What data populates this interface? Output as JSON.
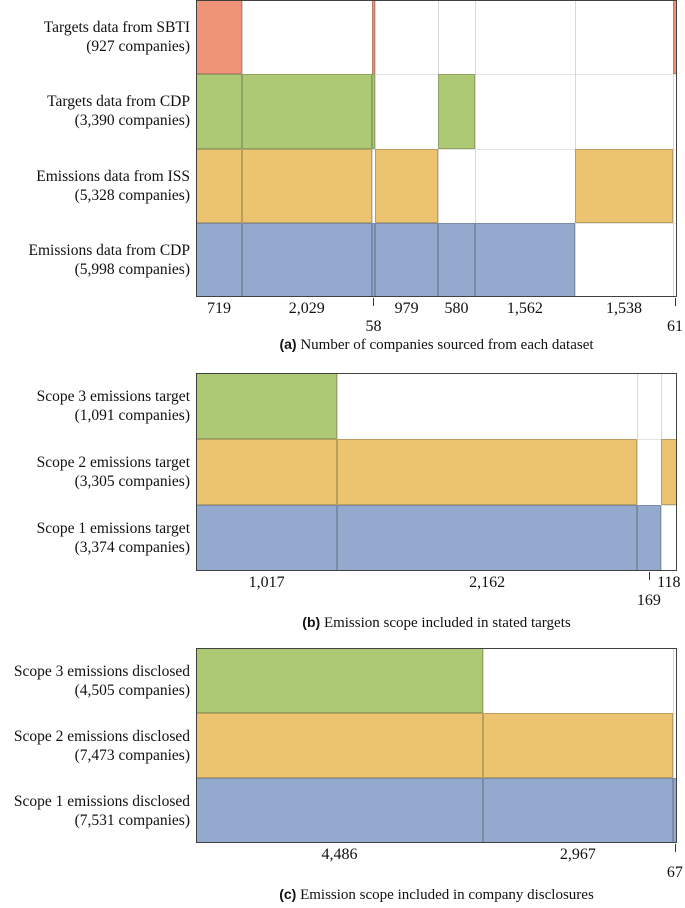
{
  "colors": {
    "red": "#f09478",
    "green": "#aec973",
    "orange": "#ecc36e",
    "blue": "#93a9cd",
    "frame": "#414141",
    "grid": "#d8d8d8",
    "text": "#111111"
  },
  "chart_data": [
    {
      "type": "bar",
      "subtype": "set-membership segmented bar",
      "orientation": "horizontal",
      "caption_tag": "(a)",
      "caption": "Number of companies sourced from each dataset",
      "columns": [
        {
          "value": 719,
          "label": "719",
          "tick": false,
          "second_line": false
        },
        {
          "value": 2029,
          "label": "2,029",
          "tick": false,
          "second_line": false
        },
        {
          "value": 58,
          "label": "58",
          "tick": true,
          "second_line": true
        },
        {
          "value": 979,
          "label": "979",
          "tick": false,
          "second_line": false
        },
        {
          "value": 580,
          "label": "580",
          "tick": false,
          "second_line": false
        },
        {
          "value": 1562,
          "label": "1,562",
          "tick": false,
          "second_line": false
        },
        {
          "value": 1538,
          "label": "1,538",
          "tick": false,
          "second_line": false
        },
        {
          "value": 61,
          "label": "61",
          "tick": true,
          "second_line": true
        }
      ],
      "rows": [
        {
          "label": "Targets data from SBTI",
          "sublabel": "(927 companies)",
          "companies": 927,
          "color_key": "red",
          "filled_columns": [
            0,
            2,
            7
          ]
        },
        {
          "label": "Targets data from CDP",
          "sublabel": "(3,390 companies)",
          "companies": 3390,
          "color_key": "green",
          "filled_columns": [
            0,
            1,
            2,
            4
          ]
        },
        {
          "label": "Emissions data from ISS",
          "sublabel": "(5,328 companies)",
          "companies": 5328,
          "color_key": "orange",
          "filled_columns": [
            0,
            1,
            3,
            6
          ]
        },
        {
          "label": "Emissions data from CDP",
          "sublabel": "(5,998 companies)",
          "companies": 5998,
          "color_key": "blue",
          "filled_columns": [
            0,
            1,
            2,
            3,
            4,
            5
          ]
        }
      ]
    },
    {
      "type": "bar",
      "subtype": "set-membership segmented bar",
      "orientation": "horizontal",
      "caption_tag": "(b)",
      "caption": "Emission scope included in stated targets",
      "columns": [
        {
          "value": 1017,
          "label": "1,017",
          "tick": false,
          "second_line": false
        },
        {
          "value": 2162,
          "label": "2,162",
          "tick": false,
          "second_line": false
        },
        {
          "value": 169,
          "label": "169",
          "tick": true,
          "second_line": true
        },
        {
          "value": 118,
          "label": "118",
          "tick": false,
          "second_line": false
        }
      ],
      "rows": [
        {
          "label": "Scope 3 emissions target",
          "sublabel": "(1,091 companies)",
          "companies": 1091,
          "color_key": "green",
          "filled_columns": [
            0
          ]
        },
        {
          "label": "Scope 2 emissions target",
          "sublabel": "(3,305 companies)",
          "companies": 3305,
          "color_key": "orange",
          "filled_columns": [
            0,
            1,
            3
          ]
        },
        {
          "label": "Scope 1 emissions target",
          "sublabel": "(3,374 companies)",
          "companies": 3374,
          "color_key": "blue",
          "filled_columns": [
            0,
            1,
            2
          ]
        }
      ]
    },
    {
      "type": "bar",
      "subtype": "set-membership segmented bar",
      "orientation": "horizontal",
      "caption_tag": "(c)",
      "caption": "Emission scope included in company disclosures",
      "columns": [
        {
          "value": 4486,
          "label": "4,486",
          "tick": false,
          "second_line": false
        },
        {
          "value": 2967,
          "label": "2,967",
          "tick": false,
          "second_line": false
        },
        {
          "value": 67,
          "label": "67",
          "tick": true,
          "second_line": true
        }
      ],
      "rows": [
        {
          "label": "Scope 3 emissions disclosed",
          "sublabel": "(4,505 companies)",
          "companies": 4505,
          "color_key": "green",
          "filled_columns": [
            0
          ]
        },
        {
          "label": "Scope 2 emissions disclosed",
          "sublabel": "(7,473 companies)",
          "companies": 7473,
          "color_key": "orange",
          "filled_columns": [
            0,
            1
          ]
        },
        {
          "label": "Scope 1 emissions disclosed",
          "sublabel": "(7,531 companies)",
          "companies": 7531,
          "color_key": "blue",
          "filled_columns": [
            0,
            1,
            2
          ]
        }
      ]
    }
  ]
}
